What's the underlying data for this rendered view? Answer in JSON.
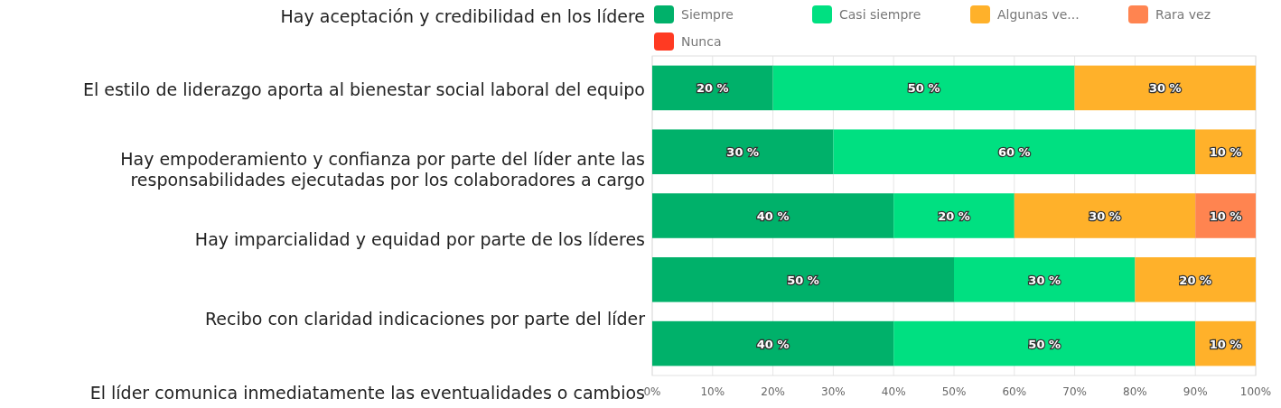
{
  "chart_data": {
    "type": "bar",
    "orientation": "horizontal",
    "stacked": true,
    "categories": [
      null,
      null,
      null,
      null,
      null
    ],
    "series": [
      {
        "name": "Siempre",
        "color": "#00b16a",
        "values": [
          20,
          30,
          40,
          50,
          40
        ],
        "value_labels": [
          "20 %",
          "30 %",
          "40 %",
          "50 %",
          "40 %"
        ]
      },
      {
        "name": "Casi siempre",
        "color": "#00e081",
        "values": [
          50,
          60,
          20,
          30,
          50
        ],
        "value_labels": [
          "50 %",
          "60 %",
          "20 %",
          "30 %",
          "50 %"
        ]
      },
      {
        "name": "Algunas ve...",
        "color": "#ffb12a",
        "values": [
          30,
          10,
          30,
          20,
          10
        ],
        "value_labels": [
          "30 %",
          "10 %",
          "30 %",
          "20 %",
          "10 %"
        ]
      },
      {
        "name": "Rara vez",
        "color": "#ff8450",
        "values": [
          null,
          null,
          10,
          null,
          null
        ],
        "value_labels": [
          null,
          null,
          "10 %",
          null,
          null
        ]
      },
      {
        "name": "Nunca",
        "color": "#ff3a22",
        "values": [
          null,
          null,
          null,
          null,
          null
        ]
      }
    ],
    "xlim": [
      0,
      100
    ],
    "xticks": [
      {
        "value": 0,
        "label": "0%"
      },
      {
        "value": 10,
        "label": "10%"
      },
      {
        "value": 20,
        "label": "20%"
      },
      {
        "value": 30,
        "label": "30%"
      },
      {
        "value": 40,
        "label": "40%"
      },
      {
        "value": 50,
        "label": "50%"
      },
      {
        "value": 60,
        "label": "60%"
      },
      {
        "value": 70,
        "label": "70%"
      },
      {
        "value": 80,
        "label": "80%"
      },
      {
        "value": 90,
        "label": "90%"
      },
      {
        "value": 100,
        "label": "100%"
      }
    ],
    "grid": "x",
    "legend": "top",
    "annotations": [
      "Hay aceptación y credibilidad en los lídere",
      "El estilo de liderazgo aporta al bienestar social laboral del equipo",
      "Hay empoderamiento y confianza por parte del líder ante las\nresponsabilidades ejecutadas por los colaboradores a cargo",
      "Hay imparcialidad y equidad por parte de los líderes",
      "Recibo con claridad indicaciones por parte del líder",
      "El líder comunica inmediatamente las eventualidades o cambios"
    ]
  }
}
